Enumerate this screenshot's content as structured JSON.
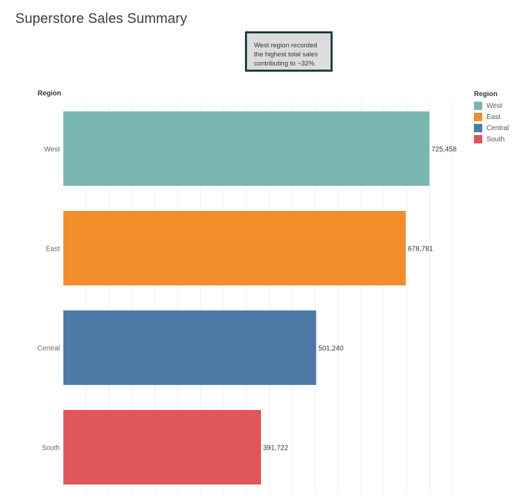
{
  "title": "Superstore Sales Summary",
  "annotation": {
    "lines": [
      "West region recorded",
      "the highest total sales",
      "contributing to ~32%"
    ]
  },
  "axis": {
    "row_header": "Region"
  },
  "legend": {
    "title": "Region",
    "items": [
      {
        "label": "West",
        "color": "#7ab7b2"
      },
      {
        "label": "East",
        "color": "#f28e2c"
      },
      {
        "label": "Central",
        "color": "#4e79a7"
      },
      {
        "label": "South",
        "color": "#e15759"
      }
    ]
  },
  "chart_data": {
    "type": "bar",
    "orientation": "horizontal",
    "title": "Superstore Sales Summary",
    "ylabel": "Region",
    "xlabel": "",
    "categories": [
      "West",
      "East",
      "Central",
      "South"
    ],
    "values": [
      725458,
      678781,
      501240,
      391722
    ],
    "value_labels": [
      "725,458",
      "678,781",
      "501,240",
      "391,722"
    ],
    "colors": [
      "#7ab7b2",
      "#f28e2c",
      "#4e79a7",
      "#e15759"
    ],
    "xlim": [
      0,
      800000
    ],
    "grid": true,
    "legend_position": "top-right"
  }
}
